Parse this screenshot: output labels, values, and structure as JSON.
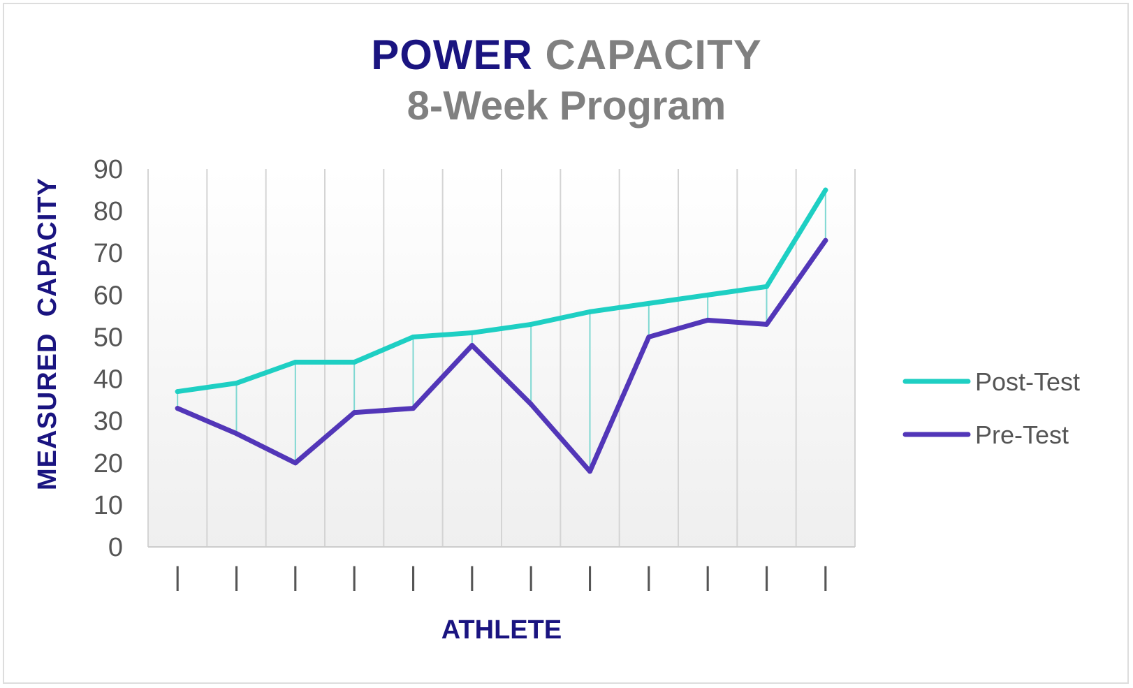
{
  "title": {
    "word1": "POWER",
    "word2": "CAPACITY",
    "subtitle": "8-Week Program"
  },
  "colors": {
    "post": "#1ecfc3",
    "pre": "#5236b8",
    "title_dark": "#1a1480",
    "title_grey": "#808080",
    "drop_line": "#7fd8d2"
  },
  "chart_data": {
    "type": "line",
    "title": "POWER CAPACITY 8-Week Program",
    "xlabel": "ATHLETE",
    "ylabel": "MEASURED  CAPACITY",
    "categories": [
      "|",
      "|",
      "|",
      "|",
      "|",
      "|",
      "|",
      "|",
      "|",
      "|",
      "|",
      "|"
    ],
    "ylim": [
      0,
      90
    ],
    "yticks": [
      0,
      10,
      20,
      30,
      40,
      50,
      60,
      70,
      80,
      90
    ],
    "grid": "vertical",
    "legend": "right",
    "drop_lines": true,
    "series": [
      {
        "name": "Post-Test",
        "values": [
          37,
          39,
          44,
          44,
          50,
          51,
          53,
          56,
          58,
          60,
          62,
          85
        ]
      },
      {
        "name": "Pre-Test",
        "values": [
          33,
          27,
          20,
          32,
          33,
          48,
          34,
          18,
          50,
          54,
          53,
          73
        ]
      }
    ]
  }
}
